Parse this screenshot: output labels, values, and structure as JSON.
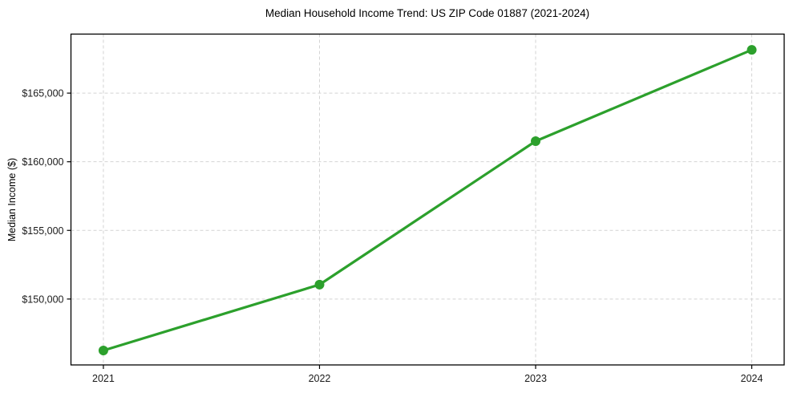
{
  "chart_data": {
    "type": "line",
    "title": "Median Household Income Trend: US ZIP Code 01887 (2021-2024)",
    "xlabel": "",
    "ylabel": "Median Income ($)",
    "x": [
      2021,
      2022,
      2023,
      2024
    ],
    "series": [
      {
        "name": "Median Household Income",
        "values": [
          146250,
          151050,
          161500,
          168150
        ]
      }
    ],
    "x_tick_labels": [
      "2021",
      "2022",
      "2023",
      "2024"
    ],
    "y_ticks": [
      150000,
      155000,
      160000,
      165000
    ],
    "y_tick_labels": [
      "$150,000",
      "$155,000",
      "$160,000",
      "$165,000"
    ],
    "xlim": [
      2020.85,
      2024.15
    ],
    "ylim": [
      145200,
      169300
    ],
    "grid": true,
    "grid_style": "dashed",
    "legend_position": "none",
    "marker": "circle",
    "colors": {
      "line": "#2ca02c",
      "grid": "#d4d4d4",
      "spine": "#000000",
      "background": "#ffffff",
      "tick_label": "#1a1a1a"
    }
  }
}
